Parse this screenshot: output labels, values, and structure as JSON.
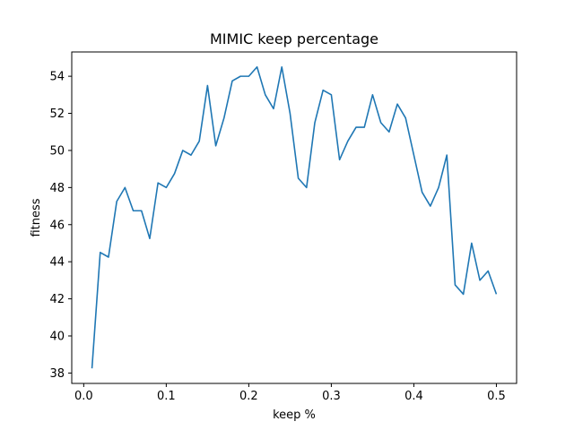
{
  "chart_data": {
    "type": "line",
    "title": "MIMIC keep percentage",
    "xlabel": "keep %",
    "ylabel": "fitness",
    "xlim": [
      -0.0145,
      0.5245
    ],
    "ylim": [
      37.44,
      55.31
    ],
    "x_ticks": [
      0.0,
      0.1,
      0.2,
      0.3,
      0.4,
      0.5
    ],
    "x_tick_labels": [
      "0.0",
      "0.1",
      "0.2",
      "0.3",
      "0.4",
      "0.5"
    ],
    "y_ticks": [
      38,
      40,
      42,
      44,
      46,
      48,
      50,
      52,
      54
    ],
    "y_tick_labels": [
      "38",
      "40",
      "42",
      "44",
      "46",
      "48",
      "50",
      "52",
      "54"
    ],
    "grid": false,
    "line_color": "#1f77b4",
    "series": [
      {
        "x": [
          0.01,
          0.02,
          0.03,
          0.04,
          0.05,
          0.06,
          0.07,
          0.08,
          0.09,
          0.1,
          0.11,
          0.12,
          0.13,
          0.14,
          0.15,
          0.16,
          0.17,
          0.18,
          0.19,
          0.2,
          0.21,
          0.22,
          0.23,
          0.24,
          0.25,
          0.26,
          0.27,
          0.28,
          0.29,
          0.3,
          0.31,
          0.32,
          0.33,
          0.34,
          0.35,
          0.36,
          0.37,
          0.38,
          0.39,
          0.4,
          0.41,
          0.42,
          0.43,
          0.44,
          0.45,
          0.46,
          0.47,
          0.48,
          0.49,
          0.5
        ],
        "values": [
          38.25,
          44.5,
          44.25,
          47.25,
          48.0,
          46.75,
          46.75,
          45.25,
          48.25,
          48.0,
          48.75,
          50.0,
          49.75,
          50.5,
          53.5,
          50.25,
          51.75,
          53.75,
          54.0,
          54.0,
          54.5,
          53.0,
          52.25,
          54.5,
          52.0,
          48.5,
          48.0,
          51.5,
          53.25,
          53.0,
          49.5,
          50.5,
          51.25,
          51.25,
          53.0,
          51.5,
          51.0,
          52.5,
          51.75,
          49.75,
          47.75,
          47.0,
          48.0,
          49.75,
          42.75,
          42.25,
          45.0,
          43.0,
          43.5,
          42.25
        ]
      }
    ]
  }
}
